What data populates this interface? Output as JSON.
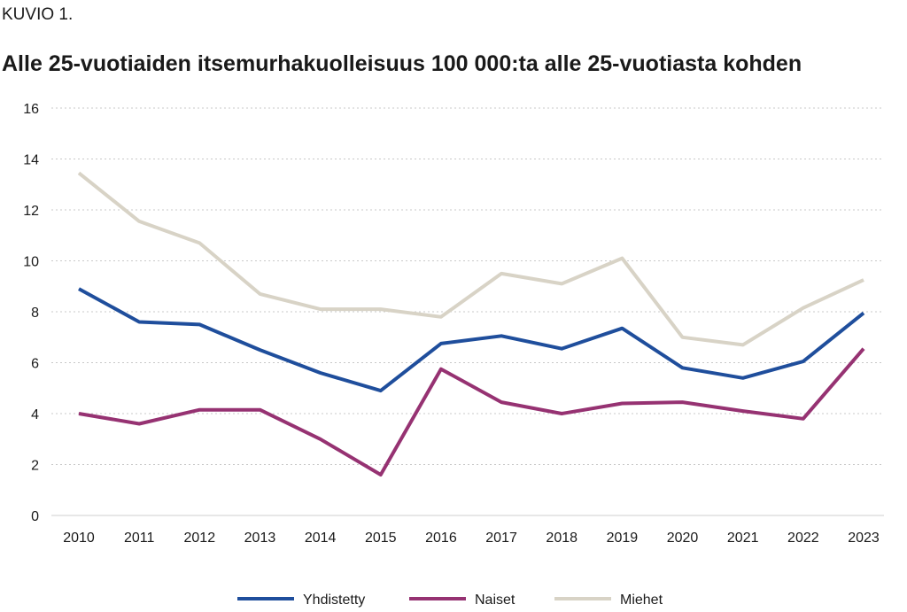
{
  "figure_label": "KUVIO 1.",
  "chart_data": {
    "type": "line",
    "title": "Alle 25-vuotiaiden itsemurhakuolleisuus 100 000:ta alle 25-vuotiasta kohden",
    "xlabel": "",
    "ylabel": "",
    "categories": [
      "2010",
      "2011",
      "2012",
      "2013",
      "2014",
      "2015",
      "2016",
      "2017",
      "2018",
      "2019",
      "2020",
      "2021",
      "2022",
      "2023"
    ],
    "ylim": [
      0,
      16
    ],
    "yticks": [
      0,
      2,
      4,
      6,
      8,
      10,
      12,
      14,
      16
    ],
    "grid": true,
    "legend_position": "bottom",
    "series": [
      {
        "name": "Yhdistetty",
        "color": "#1f4e9c",
        "values": [
          8.9,
          7.6,
          7.5,
          6.5,
          5.6,
          4.9,
          6.75,
          7.05,
          6.55,
          7.35,
          5.8,
          5.4,
          6.05,
          7.95
        ]
      },
      {
        "name": "Naiset",
        "color": "#963272",
        "values": [
          4.0,
          3.6,
          4.15,
          4.15,
          3.0,
          1.6,
          5.75,
          4.45,
          4.0,
          4.4,
          4.45,
          4.1,
          3.8,
          6.55
        ]
      },
      {
        "name": "Miehet",
        "color": "#d8d3c6",
        "values": [
          13.45,
          11.55,
          10.7,
          8.7,
          8.1,
          8.1,
          7.8,
          9.5,
          9.1,
          10.1,
          7.0,
          6.7,
          8.15,
          9.25
        ]
      }
    ]
  }
}
